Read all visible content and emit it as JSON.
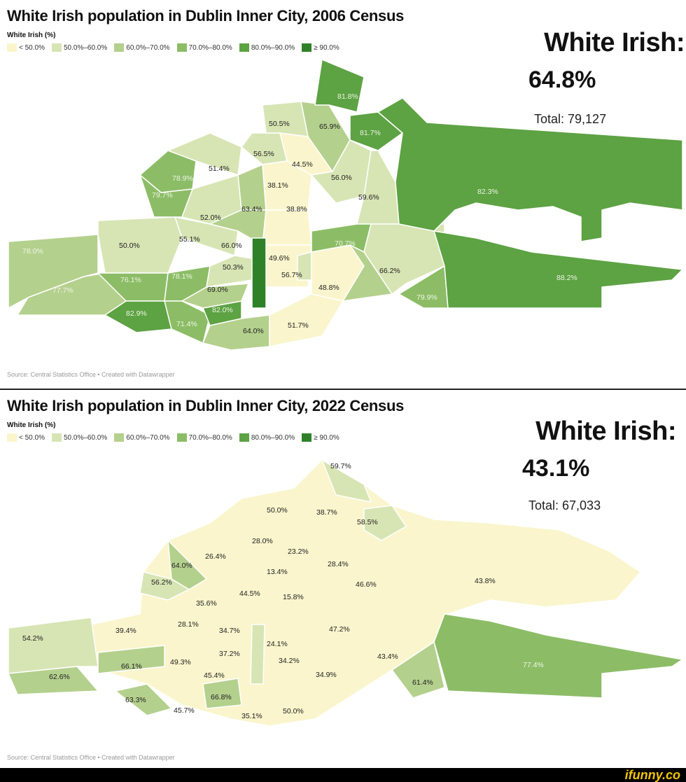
{
  "palette": {
    "c1": "#faf5cc",
    "c2": "#d7e5b4",
    "c3": "#b4d08d",
    "c4": "#8cbd66",
    "c5": "#5da243",
    "c6": "#2f8128"
  },
  "panels": [
    {
      "title": "White Irish population in Dublin Inner City, 2006 Census",
      "legend_title": "White Irish (%)",
      "legend": [
        "< 50.0%",
        "50.0%–60.0%",
        "60.0%–70.0%",
        "70.0%–80.0%",
        "80.0%–90.0%",
        "≥ 90.0%"
      ],
      "stat_label": "White Irish:",
      "stat_value": "64.8%",
      "total": "Total: 79,127",
      "source": "Source: Central Statistics Office • Created with Datawrapper",
      "areas": [
        "81.8%",
        "50.5%",
        "65.9%",
        "81.7%",
        "56.5%",
        "44.5%",
        "51.4%",
        "78.9%",
        "79.7%",
        "38.1%",
        "56.0%",
        "59.6%",
        "82.3%",
        "63.4%",
        "38.8%",
        "52.0%",
        "55.1%",
        "50.0%",
        "78.0%",
        "66.0%",
        "70.7%",
        "49.6%",
        "50.3%",
        "56.7%",
        "76.1%",
        "78.1%",
        "66.2%",
        "88.2%",
        "77.7%",
        "69.0%",
        "48.8%",
        "79.9%",
        "82.9%",
        "82.0%",
        "71.4%",
        "64.0%",
        "51.7%"
      ]
    },
    {
      "title": "White Irish population in Dublin Inner City, 2022 Census",
      "legend_title": "White Irish (%)",
      "legend": [
        "< 50.0%",
        "50.0%–60.0%",
        "60.0%–70.0%",
        "70.0%–80.0%",
        "80.0%–90.0%",
        "≥ 90.0%"
      ],
      "stat_label": "White Irish:",
      "stat_value": "43.1%",
      "total": "Total: 67,033",
      "source": "Source: Central Statistics Office • Created with Datawrapper",
      "areas": [
        "59.7%",
        "50.0%",
        "38.7%",
        "58.5%",
        "28.0%",
        "23.2%",
        "26.4%",
        "64.0%",
        "13.4%",
        "28.4%",
        "56.2%",
        "46.6%",
        "43.8%",
        "44.5%",
        "15.8%",
        "35.6%",
        "28.1%",
        "39.4%",
        "34.7%",
        "47.2%",
        "54.2%",
        "24.1%",
        "37.2%",
        "34.2%",
        "43.4%",
        "66.1%",
        "49.3%",
        "45.4%",
        "34.9%",
        "77.4%",
        "62.6%",
        "61.4%",
        "63.3%",
        "66.8%",
        "45.7%",
        "35.1%",
        "50.0%"
      ]
    }
  ],
  "watermark": "ifunny.co"
}
